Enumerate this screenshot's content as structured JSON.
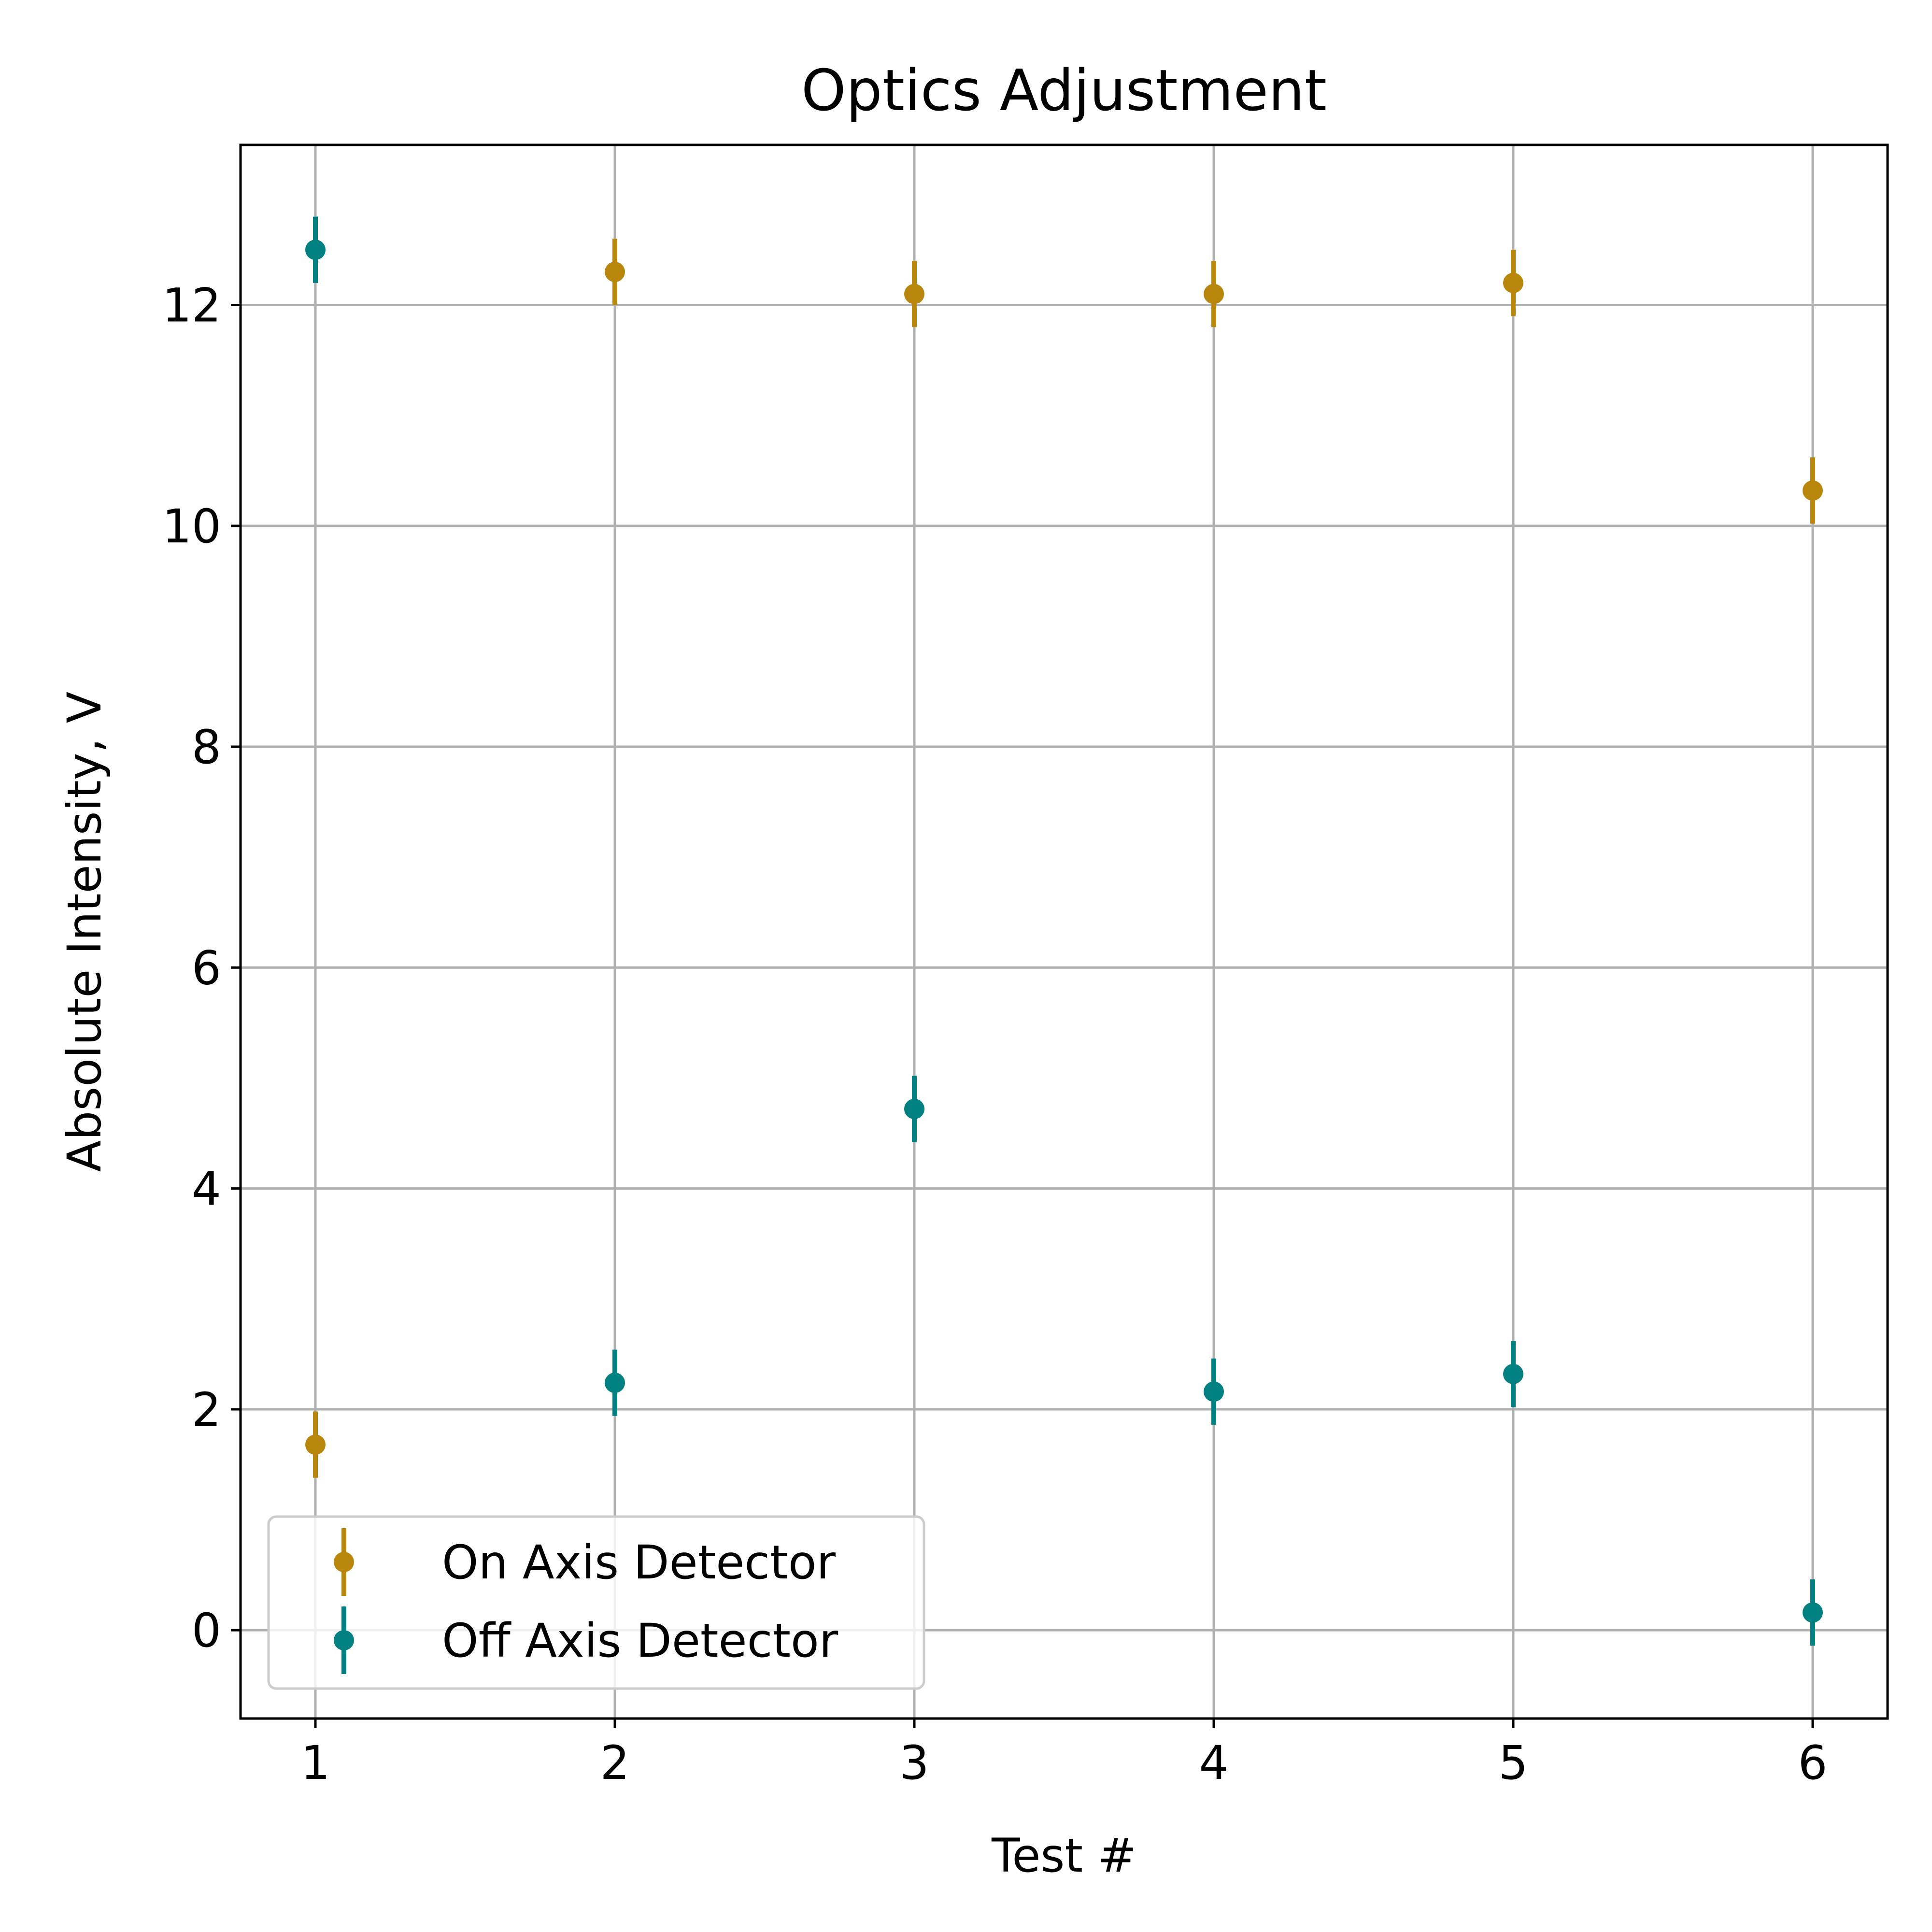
{
  "chart_data": {
    "type": "scatter",
    "title": "Optics Adjustment",
    "xlabel": "Test #",
    "ylabel": "Absolute Intensity, V",
    "xlim": [
      0.75,
      6.25
    ],
    "ylim": [
      -0.8,
      13.45
    ],
    "xticks": [
      1,
      2,
      3,
      4,
      5,
      6
    ],
    "yticks": [
      0,
      2,
      4,
      6,
      8,
      10,
      12
    ],
    "grid": true,
    "legend": "lower-left",
    "x": [
      1,
      2,
      3,
      4,
      5,
      6
    ],
    "series": [
      {
        "name": "On Axis Detector",
        "color": "#b8860b",
        "values": [
          1.68,
          12.3,
          12.1,
          12.1,
          12.2,
          10.32
        ],
        "errors": [
          0.3,
          0.3,
          0.3,
          0.3,
          0.3,
          0.3
        ]
      },
      {
        "name": "Off Axis Detector",
        "color": "#008080",
        "values": [
          12.5,
          2.24,
          4.72,
          2.16,
          2.32,
          0.16
        ],
        "errors": [
          0.3,
          0.3,
          0.3,
          0.3,
          0.3,
          0.3
        ]
      }
    ]
  }
}
